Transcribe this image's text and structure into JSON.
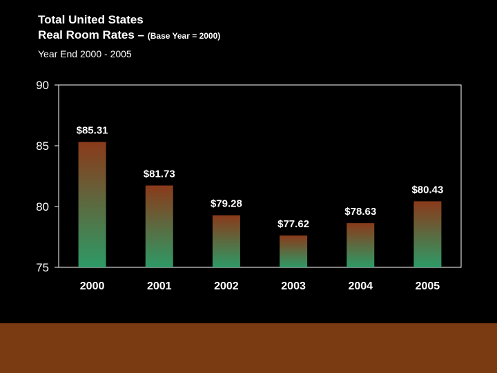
{
  "header": {
    "title_line1": "Total United States",
    "title_line2": "Real Room Rates –",
    "title_note": "(Base Year = 2000)",
    "subtitle": "Year End 2000 - 2005"
  },
  "colors": {
    "background": "#000000",
    "bar_top": "#8a3a1a",
    "bar_bottom": "#2e9a66",
    "plot_area": "#ffffff",
    "footer_band": "#7a3a12"
  },
  "chart_data": {
    "type": "bar",
    "categories": [
      "2000",
      "2001",
      "2002",
      "2003",
      "2004",
      "2005"
    ],
    "values": [
      85.31,
      81.73,
      79.28,
      77.62,
      78.63,
      80.43
    ],
    "data_labels": [
      "$85.31",
      "$81.73",
      "$79.28",
      "$77.62",
      "$78.63",
      "$80.43"
    ],
    "ylim": [
      75,
      90
    ],
    "yticks": [
      "75",
      "80",
      "85",
      "90"
    ],
    "grid": false,
    "legend": "none",
    "xlabel": "",
    "ylabel": ""
  }
}
